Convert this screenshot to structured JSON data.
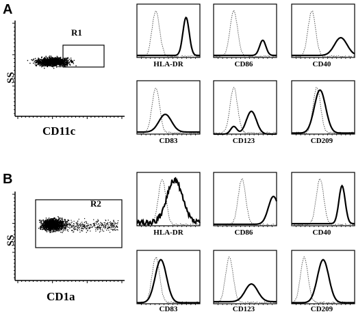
{
  "panels": [
    {
      "letter": "A",
      "dotplot": {
        "y_label": "SS",
        "x_label": "CD11c",
        "gate": "R1"
      },
      "histograms": [
        {
          "label": "HLA-DR",
          "ctrl": 0.3,
          "pos": 0.78,
          "posShape": "sharp"
        },
        {
          "label": "CD86",
          "ctrl": 0.32,
          "pos": 0.78,
          "posShape": "small"
        },
        {
          "label": "CD40",
          "ctrl": 0.32,
          "pos": 0.78,
          "posShape": "broad"
        },
        {
          "label": "CD83",
          "ctrl": 0.3,
          "pos": 0.45,
          "posShape": "broad"
        },
        {
          "label": "CD123",
          "ctrl": 0.32,
          "pos": 0.6,
          "posShape": "medium"
        },
        {
          "label": "CD209",
          "ctrl": 0.4,
          "pos": 0.45,
          "posShape": "overlap"
        }
      ]
    },
    {
      "letter": "B",
      "dotplot": {
        "y_label": "SS",
        "x_label": "CD1a",
        "gate": "R2"
      },
      "histograms": [
        {
          "label": "HLA-DR",
          "ctrl": 0.4,
          "pos": 0.6,
          "posShape": "jagged"
        },
        {
          "label": "CD86",
          "ctrl": 0.45,
          "pos": 0.95,
          "posShape": "edge"
        },
        {
          "label": "CD40",
          "ctrl": 0.45,
          "pos": 0.8,
          "posShape": "sharp"
        },
        {
          "label": "CD83",
          "ctrl": 0.3,
          "pos": 0.38,
          "posShape": "overlap"
        },
        {
          "label": "CD123",
          "ctrl": 0.25,
          "pos": 0.6,
          "posShape": "broad"
        },
        {
          "label": "CD209",
          "ctrl": 0.2,
          "pos": 0.5,
          "posShape": "overlap"
        }
      ]
    }
  ]
}
